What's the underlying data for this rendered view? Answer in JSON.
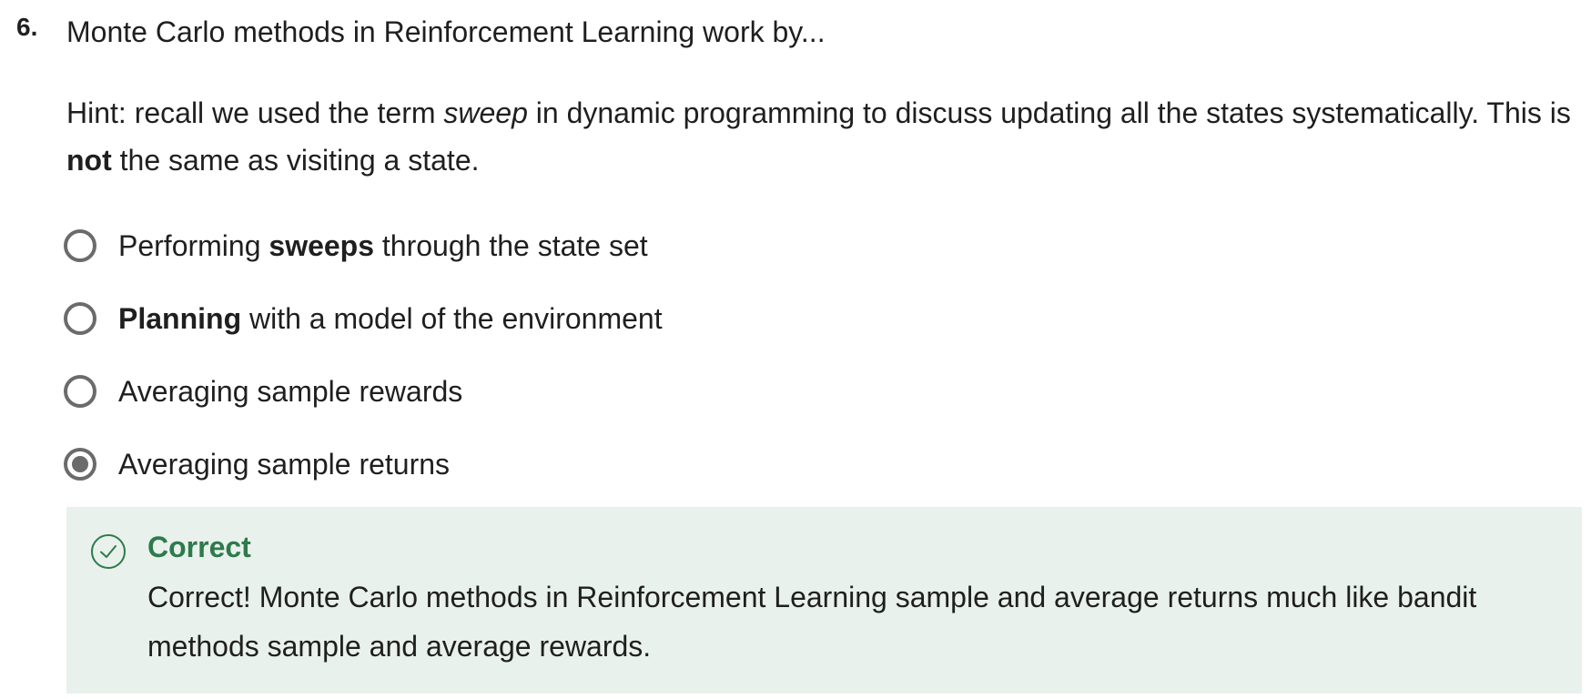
{
  "question": {
    "number": "6.",
    "text": "Monte Carlo methods in Reinforcement Learning work by..."
  },
  "hint": {
    "part1": "Hint: recall we used the term ",
    "emph": "sweep",
    "part2": " in dynamic programming to discuss updating all the states systematically. This is ",
    "bold": "not",
    "part3": " the same as visiting a state."
  },
  "options": [
    {
      "before": "Performing ",
      "bold": "sweeps",
      "after": " through the state set",
      "selected": false
    },
    {
      "before": "",
      "bold": "Planning",
      "after": " with a model of the environment",
      "selected": false
    },
    {
      "before": "Averaging sample rewards",
      "bold": "",
      "after": "",
      "selected": false
    },
    {
      "before": "Averaging sample returns",
      "bold": "",
      "after": "",
      "selected": true
    }
  ],
  "feedback": {
    "icon": "check-circle-icon",
    "title": "Correct",
    "text": "Correct! Monte Carlo methods in Reinforcement Learning sample and average returns much like bandit methods sample and average rewards.",
    "color": "#2e7a4c",
    "background": "#e9f1ec"
  }
}
